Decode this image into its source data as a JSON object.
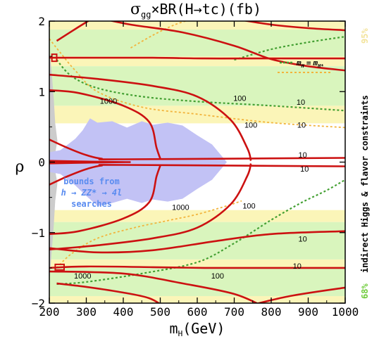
{
  "chart_data": {
    "type": "line",
    "title": "σ_gg × BR(H→tc) (fb)",
    "title_main": "σ",
    "title_sub": "gg",
    "title_rest": "×BR(H→tc)(fb)",
    "xlabel_main": "m",
    "xlabel_sub": "H",
    "xlabel_rest": "(GeV)",
    "ylabel": "ρ",
    "xlim": [
      200,
      1000
    ],
    "ylim": [
      -2,
      2
    ],
    "x_ticks": [
      200,
      300,
      400,
      500,
      600,
      700,
      800,
      900,
      1000
    ],
    "y_ticks": [
      -2,
      -1,
      0,
      1,
      2
    ],
    "band_68_color": "#d9f5bd",
    "band_95_color": "#fbf5b8",
    "excluded_color": "#c2c2f5",
    "gray_color": "#cccccc",
    "contour_color": "#cc1111",
    "green_dot_color": "#44a033",
    "orange_dot_color": "#f2b43c",
    "bands": [
      {
        "level": "95%",
        "rho_ranges": [
          [
            1.88,
            2.0
          ],
          [
            1.36,
            1.5
          ],
          [
            0.55,
            0.8
          ],
          [
            -0.85,
            -0.68
          ],
          [
            -1.5,
            -1.38
          ],
          [
            -2.0,
            -1.9
          ]
        ]
      },
      {
        "level": "68%",
        "rho_ranges": [
          [
            1.5,
            1.88
          ],
          [
            0.8,
            1.36
          ],
          [
            -1.38,
            -0.85
          ],
          [
            -1.9,
            -1.5
          ]
        ]
      }
    ],
    "contour_labels": [
      {
        "text": "1000",
        "x": 360,
        "rho": 1.66
      },
      {
        "text": "100",
        "x": 715,
        "rho": 1.74
      },
      {
        "text": "10",
        "x": 880,
        "rho": 1.63
      },
      {
        "text": "100",
        "x": 745,
        "rho": 0.98
      },
      {
        "text": "10",
        "x": 882,
        "rho": 0.98
      },
      {
        "text": "10",
        "x": 885,
        "rho": 0.13
      },
      {
        "text": "10",
        "x": 890,
        "rho": -0.27
      },
      {
        "text": "1000",
        "x": 555,
        "rho": -1.36
      },
      {
        "text": "100",
        "x": 740,
        "rho": -1.32
      },
      {
        "text": "10",
        "x": 885,
        "rho": -2.25
      },
      {
        "text": "1000",
        "x": 290,
        "rho": -3.3
      },
      {
        "text": "100",
        "x": 655,
        "rho": -3.3
      },
      {
        "text": "10",
        "x": 870,
        "rho": -3.02
      }
    ],
    "legend": {
      "line_label_main": "m",
      "line_label_sub": "H",
      "line_label_eq": "=",
      "line_label_main2": "m",
      "line_label_sub2": "H*"
    },
    "bounds_label": [
      "bounds from",
      "h → ZZ* → 4l",
      "searches"
    ],
    "right_label": "indirect Higgs & flavor constraints",
    "right_label_95": "95%",
    "right_label_68": "68%"
  }
}
